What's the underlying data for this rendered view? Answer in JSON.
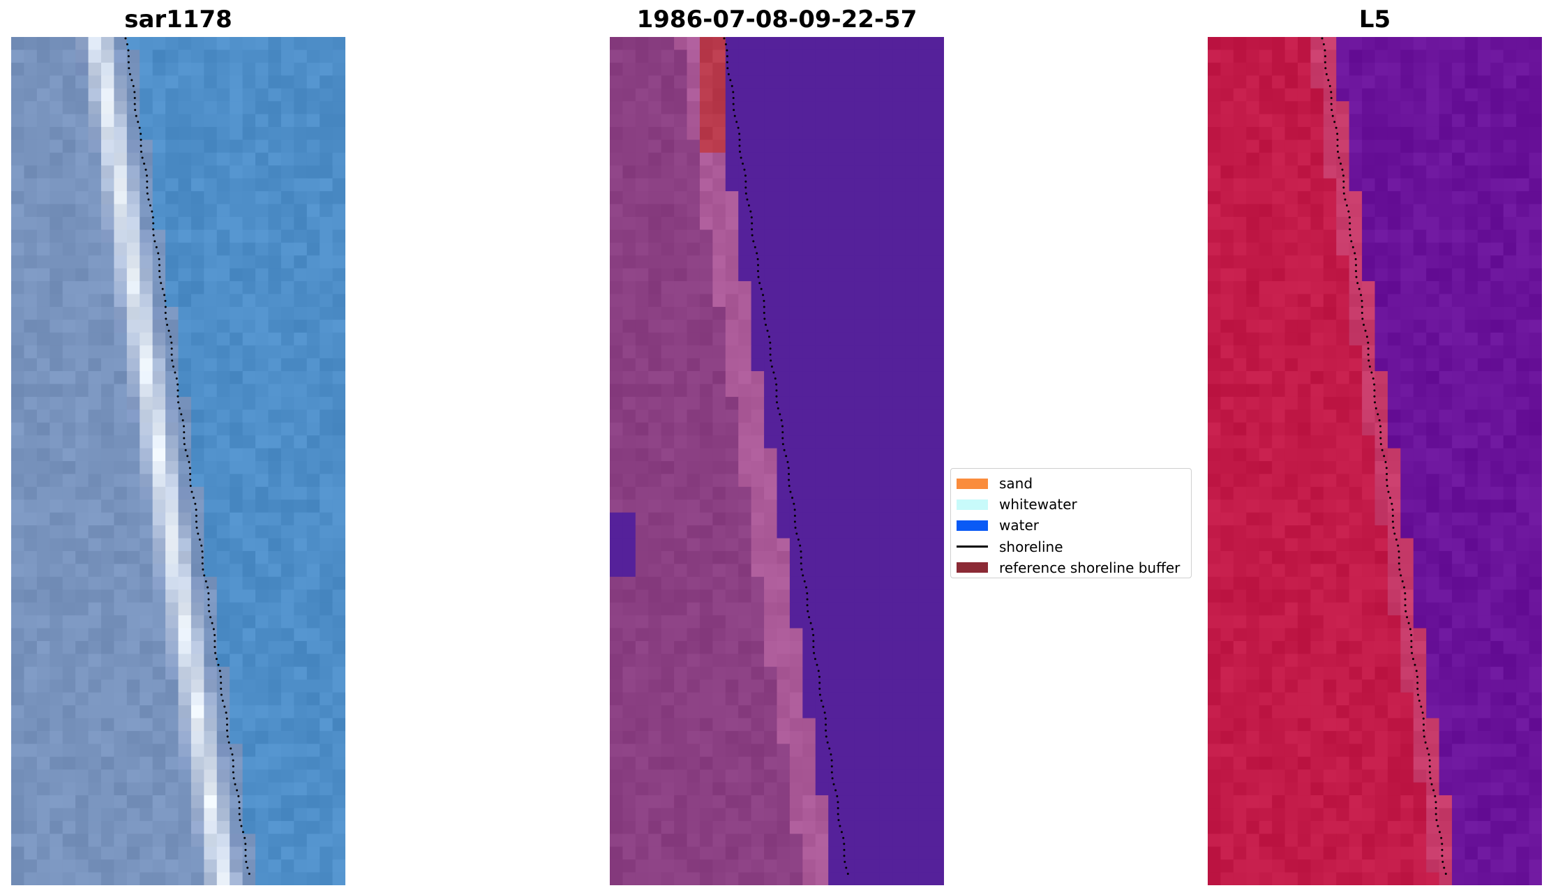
{
  "panels": [
    {
      "title": "sar1178",
      "kind": "rgb",
      "colors": {
        "water": "#4e8ec8",
        "shore": "#7c94c0",
        "land": "#7893bd",
        "foam": "#eef4fa"
      }
    },
    {
      "title": "1986-07-08-09-22-57",
      "kind": "classified",
      "colors": {
        "water": "#55219a",
        "shore": "#ab5a98",
        "land": "#8a3f82",
        "patch": "#b93a4c"
      }
    },
    {
      "title": "L5",
      "kind": "falsecolor",
      "colors": {
        "water": "#6a139a",
        "shore": "#c73b6a",
        "land": "#c21a48"
      }
    }
  ],
  "legend": {
    "items": [
      {
        "label": "sand",
        "color": "#fa8c3c",
        "type": "patch"
      },
      {
        "label": "whitewater",
        "color": "#c8fafa",
        "type": "patch"
      },
      {
        "label": "water",
        "color": "#0a5af5",
        "type": "patch"
      },
      {
        "label": "shoreline",
        "color": "#000000",
        "type": "line"
      },
      {
        "label": "reference shoreline buffer",
        "color": "#8b2a35",
        "type": "patch"
      }
    ]
  }
}
